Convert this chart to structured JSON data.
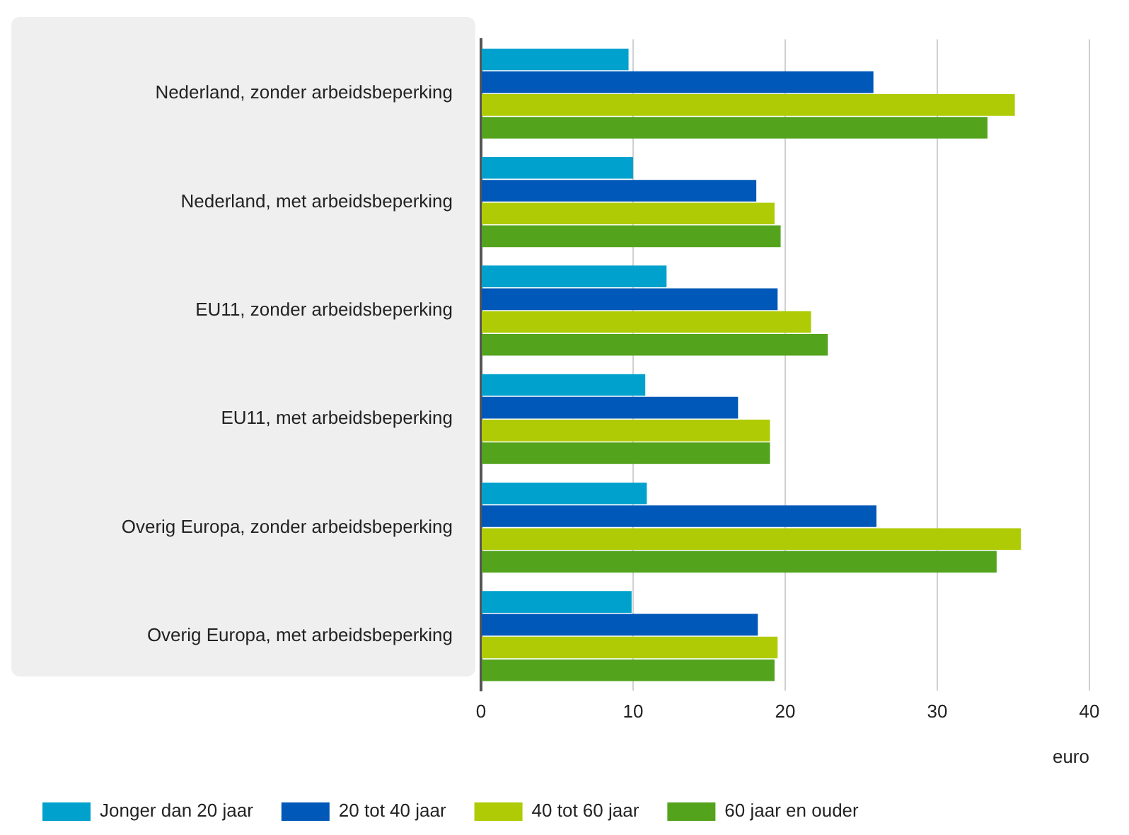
{
  "chart_data": {
    "type": "bar",
    "orientation": "horizontal",
    "xlabel": "euro",
    "categories": [
      "Nederland, zonder arbeidsbeperking",
      "Nederland, met arbeidsbeperking",
      "EU11, zonder arbeidsbeperking",
      "EU11, met arbeidsbeperking",
      "Overig Europa, zonder arbeidsbeperking",
      "Overig Europa, met arbeidsbeperking"
    ],
    "series": [
      {
        "name": "Jonger dan 20 jaar",
        "color": "#00a1cd",
        "values": [
          9.7,
          10,
          12.2,
          10.8,
          10.9,
          9.9
        ]
      },
      {
        "name": "20 tot 40 jaar",
        "color": "#0058b8",
        "values": [
          25.8,
          18.1,
          19.5,
          16.9,
          26,
          18.2
        ]
      },
      {
        "name": "40 tot 60 jaar",
        "color": "#afcb05",
        "values": [
          35.1,
          19.3,
          21.7,
          19,
          35.5,
          19.5
        ]
      },
      {
        "name": "60 jaar en ouder",
        "color": "#53a31d",
        "values": [
          33.3,
          19.7,
          22.8,
          19,
          33.9,
          19.3
        ]
      }
    ],
    "xlim": [
      0,
      40
    ],
    "xticks": [
      0,
      10,
      20,
      30,
      40
    ],
    "grid": "x",
    "legend": "bottom"
  }
}
